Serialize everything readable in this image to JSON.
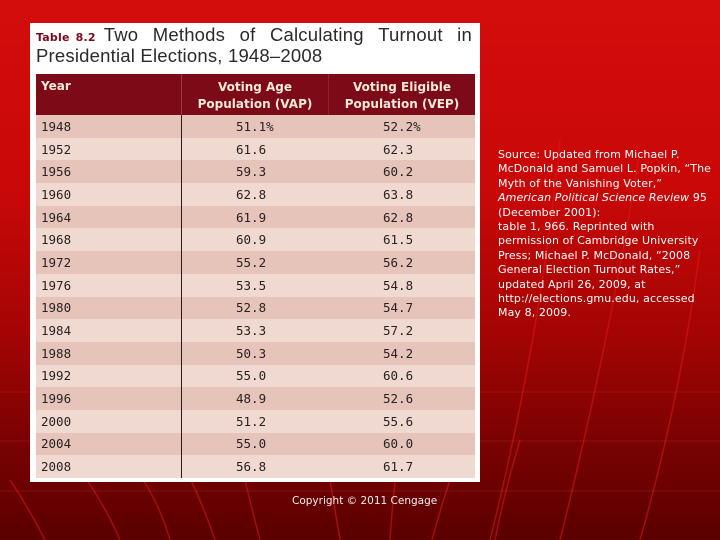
{
  "slide": {
    "table_label": "Table",
    "table_number": "8.2",
    "title_line1_words": [
      "Two",
      "Methods",
      "of",
      "Calculating",
      "Turnout",
      "in"
    ],
    "title_line2": "Presidential Elections, 1948–2008"
  },
  "table": {
    "headers": {
      "year": "Year",
      "vap_line1": "Voting Age",
      "vap_line2": "Population (VAP)",
      "vep_line1": "Voting Eligible",
      "vep_line2": "Population (VEP)"
    },
    "rows": [
      {
        "year": "1948",
        "vap": "51.1%",
        "vep": "52.2%"
      },
      {
        "year": "1952",
        "vap": "61.6",
        "vep": "62.3"
      },
      {
        "year": "1956",
        "vap": "59.3",
        "vep": "60.2"
      },
      {
        "year": "1960",
        "vap": "62.8",
        "vep": "63.8"
      },
      {
        "year": "1964",
        "vap": "61.9",
        "vep": "62.8"
      },
      {
        "year": "1968",
        "vap": "60.9",
        "vep": "61.5"
      },
      {
        "year": "1972",
        "vap": "55.2",
        "vep": "56.2"
      },
      {
        "year": "1976",
        "vap": "53.5",
        "vep": "54.8"
      },
      {
        "year": "1980",
        "vap": "52.8",
        "vep": "54.7"
      },
      {
        "year": "1984",
        "vap": "53.3",
        "vep": "57.2"
      },
      {
        "year": "1988",
        "vap": "50.3",
        "vep": "54.2"
      },
      {
        "year": "1992",
        "vap": "55.0",
        "vep": "60.6"
      },
      {
        "year": "1996",
        "vap": "48.9",
        "vep": "52.6"
      },
      {
        "year": "2000",
        "vap": "51.2",
        "vep": "55.6"
      },
      {
        "year": "2004",
        "vap": "55.0",
        "vep": "60.0"
      },
      {
        "year": "2008",
        "vap": "56.8",
        "vep": "61.7"
      }
    ]
  },
  "source": {
    "part1": "Source: Updated from Michael P. McDonald and Samuel L. Popkin, “The Myth of the Vanishing Voter,” ",
    "journal": "American Political Science Review",
    "part2": " 95 (December 2001):",
    "part3": "table 1, 966. Reprinted with permission of Cambridge University Press; Michael P. McDonald, “2008 General Election Turnout Rates,” updated April 26, 2009, at http://elections.gmu.edu, accessed May 8, 2009."
  },
  "footer": {
    "copyright": "Copyright © 2011 Cengage"
  },
  "colors": {
    "header_bg": "#7d0a17",
    "row_dark": "#e6c4b9",
    "row_light": "#f0d9d1",
    "slide_bg_top": "#d40c0c",
    "slide_bg_bottom": "#5a0000"
  }
}
